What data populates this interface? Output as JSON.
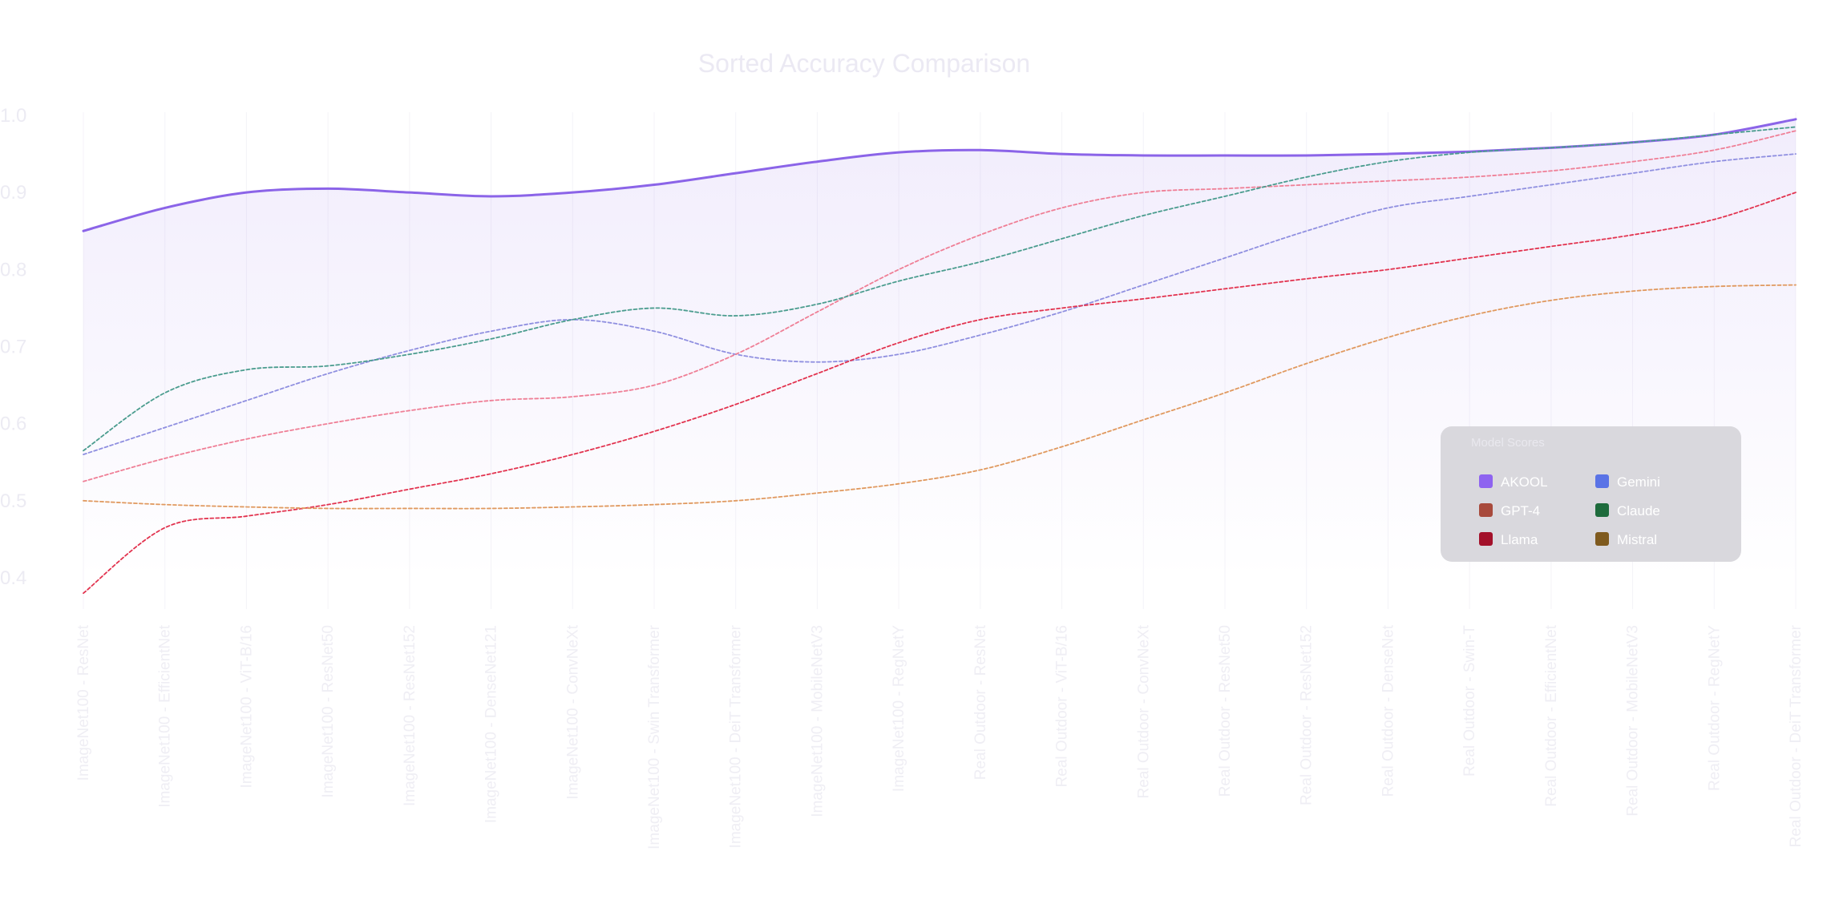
{
  "chart_data": {
    "type": "line",
    "title": "Sorted Accuracy Comparison",
    "xlabel": "",
    "ylabel": "",
    "ylim": [
      0.35,
      1.02
    ],
    "yticks": [
      "0.4",
      "0.5",
      "0.6",
      "0.7",
      "0.8",
      "0.9",
      "1.0"
    ],
    "grid": true,
    "legend_position": "lower-right",
    "legend_title": "Model Scores",
    "categories": [
      "ImageNet100 - ResNet",
      "ImageNet100 - EfficientNet",
      "ImageNet100 - ViT-B/16",
      "ImageNet100 - ResNet50",
      "ImageNet100 - ResNet152",
      "ImageNet100 - DenseNet121",
      "ImageNet100 - ConvNeXt",
      "ImageNet100 - Swin Transformer",
      "ImageNet100 - DeiT Transformer",
      "ImageNet100 - MobileNetV3",
      "ImageNet100 - RegNetY",
      "Real Outdoor - ResNet",
      "Real Outdoor - ViT-B/16",
      "Real Outdoor - ConvNeXt",
      "Real Outdoor - ResNet50",
      "Real Outdoor - ResNet152",
      "Real Outdoor - DenseNet",
      "Real Outdoor - Swin-T",
      "Real Outdoor - EfficientNet",
      "Real Outdoor - MobileNetV3",
      "Real Outdoor - RegNetY",
      "Real Outdoor - DeiT Transformer"
    ],
    "series": [
      {
        "name": "AKOOL",
        "color": "#8b64e8",
        "dashed": false,
        "fill": true,
        "values": [
          0.85,
          0.88,
          0.9,
          0.905,
          0.9,
          0.895,
          0.9,
          0.91,
          0.925,
          0.94,
          0.952,
          0.955,
          0.95,
          0.948,
          0.948,
          0.948,
          0.95,
          0.953,
          0.958,
          0.965,
          0.975,
          0.995
        ]
      },
      {
        "name": "Gemini",
        "color": "#8f8fe0",
        "dashed": true,
        "fill": false,
        "values": [
          0.56,
          0.595,
          0.63,
          0.665,
          0.695,
          0.72,
          0.735,
          0.72,
          0.69,
          0.68,
          0.69,
          0.715,
          0.745,
          0.78,
          0.815,
          0.85,
          0.88,
          0.895,
          0.91,
          0.925,
          0.94,
          0.95
        ]
      },
      {
        "name": "GPT-4",
        "color": "#ef7f96",
        "dashed": true,
        "fill": false,
        "values": [
          0.525,
          0.555,
          0.58,
          0.6,
          0.617,
          0.63,
          0.635,
          0.65,
          0.69,
          0.745,
          0.8,
          0.845,
          0.88,
          0.9,
          0.905,
          0.91,
          0.915,
          0.92,
          0.928,
          0.94,
          0.955,
          0.98
        ]
      },
      {
        "name": "Claude",
        "color": "#4a9c8e",
        "dashed": true,
        "fill": false,
        "values": [
          0.565,
          0.64,
          0.67,
          0.675,
          0.69,
          0.71,
          0.735,
          0.75,
          0.74,
          0.755,
          0.785,
          0.81,
          0.84,
          0.87,
          0.895,
          0.92,
          0.94,
          0.952,
          0.958,
          0.965,
          0.975,
          0.985
        ]
      },
      {
        "name": "Llama",
        "color": "#e2334f",
        "dashed": true,
        "fill": false,
        "values": [
          0.38,
          0.465,
          0.48,
          0.495,
          0.515,
          0.535,
          0.56,
          0.59,
          0.625,
          0.665,
          0.705,
          0.735,
          0.75,
          0.762,
          0.775,
          0.788,
          0.8,
          0.815,
          0.83,
          0.845,
          0.865,
          0.9
        ]
      },
      {
        "name": "Mistral",
        "color": "#e0995f",
        "dashed": true,
        "fill": false,
        "values": [
          0.5,
          0.495,
          0.492,
          0.49,
          0.49,
          0.49,
          0.492,
          0.495,
          0.5,
          0.51,
          0.522,
          0.54,
          0.57,
          0.605,
          0.64,
          0.678,
          0.712,
          0.74,
          0.76,
          0.772,
          0.778,
          0.78
        ]
      }
    ],
    "legend_swatches": {
      "AKOOL": "#8e63f0",
      "Gemini": "#5a73e6",
      "GPT-4": "#a84a3c",
      "Claude": "#1e6b3c",
      "Llama": "#a3102a",
      "Mistral": "#7f5a1e"
    }
  }
}
